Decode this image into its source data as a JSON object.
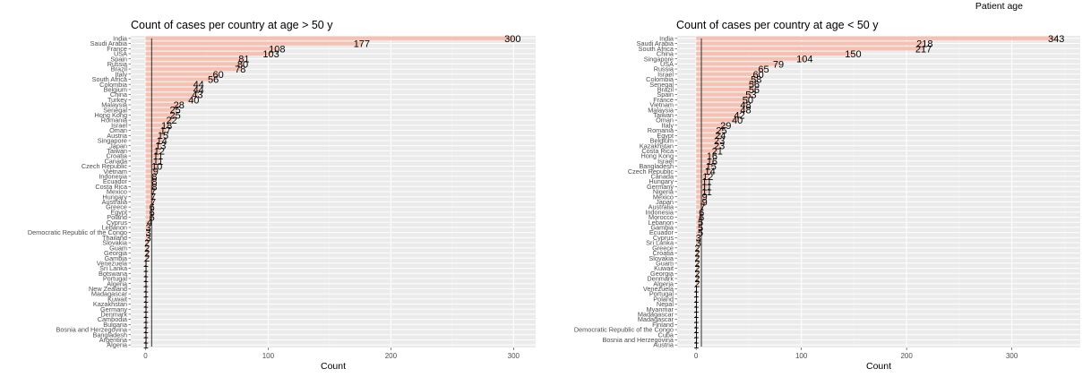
{
  "suptitle": "Patient age",
  "chart_data": [
    {
      "type": "bar",
      "orientation": "horizontal",
      "title": "Count of cases per country at age > 50 y",
      "xlabel": "Count",
      "ylabel": "",
      "xlim": [
        -12,
        318
      ],
      "xticks": [
        0,
        100,
        200,
        300
      ],
      "grid": true,
      "bar_color": "#f8c0b0",
      "categories": [
        "India",
        "Saudi Arabia",
        "France",
        "USA",
        "Spain",
        "Russia",
        "Brazil",
        "Italy",
        "South Africa",
        "Colombia",
        "Belgium",
        "China",
        "Turkey",
        "Malaysia",
        "Senegal",
        "Hong Kong",
        "Romania",
        "Israel",
        "Oman",
        "Austria",
        "Singapore",
        "Japan",
        "Taiwan",
        "Croatia",
        "Canada",
        "Czech Republic",
        "Vietnam",
        "Indonesia",
        "Ecuador",
        "Costa Rica",
        "Mexico",
        "Hungary",
        "Australia",
        "Greece",
        "Egypt",
        "Poland",
        "Cyprus",
        "Lebanon",
        "Democratic Republic of the Congo",
        "Thailand",
        "Slovakia",
        "Guam",
        "Georgia",
        "Gambia",
        "Venezuela",
        "Sri Lanka",
        "Botswana",
        "Portugal",
        "Algeria",
        "New Zealand",
        "Madagascar",
        "Kuwait",
        "Kazakhstan",
        "Germany",
        "Denmark",
        "Cambodia",
        "Bulgaria",
        "Bosnia and Herzegovina",
        "Bangladesh",
        "Argentina",
        "Algeria"
      ],
      "values": [
        300,
        177,
        108,
        103,
        81,
        80,
        78,
        60,
        56,
        44,
        44,
        43,
        40,
        28,
        25,
        25,
        22,
        18,
        17,
        15,
        14,
        13,
        12,
        11,
        11,
        10,
        9,
        8,
        8,
        8,
        7,
        7,
        7,
        6,
        6,
        6,
        4,
        3,
        3,
        3,
        2,
        2,
        2,
        2,
        1,
        1,
        1,
        1,
        1,
        1,
        1,
        1,
        1,
        1,
        1,
        1,
        1,
        1,
        1,
        1,
        1
      ],
      "data_labels": [
        "300",
        "177",
        "108",
        "103",
        "81",
        "80",
        "78",
        "60",
        "56",
        "44",
        "44",
        "43",
        "40",
        "28",
        "25",
        "25",
        "22",
        "18",
        "17",
        "15",
        "14",
        "13",
        "12",
        "11",
        "11",
        "10",
        "9",
        "8",
        "8",
        "8",
        "7",
        "7",
        "7",
        "6",
        "6",
        "6",
        "4",
        "3",
        "3",
        "3",
        "2",
        "2",
        "2",
        "2",
        "1",
        "1",
        "1",
        "1",
        "1",
        "1",
        "1",
        "1",
        "1",
        "1",
        "1",
        "1",
        "1",
        "1",
        "1",
        "1",
        "1"
      ]
    },
    {
      "type": "bar",
      "orientation": "horizontal",
      "title": "Count of cases per country at age < 50 y",
      "xlabel": "Count",
      "ylabel": "",
      "xlim": [
        -18,
        365
      ],
      "xticks": [
        0,
        100,
        200,
        300
      ],
      "grid": true,
      "bar_color": "#f8c0b0",
      "categories": [
        "India",
        "Saudi Arabia",
        "South Africa",
        "China",
        "Singapore",
        "USA",
        "Russia",
        "Israel",
        "Colombia",
        "Senegal",
        "Brazil",
        "Spain",
        "France",
        "Vietnam",
        "Malaysia",
        "Taiwan",
        "Oman",
        "Italy",
        "Romania",
        "Egypt",
        "Belgium",
        "Kazakhstan",
        "Costa Rica",
        "Hong Kong",
        "Israel",
        "Bangladesh",
        "Czech Republic",
        "Canada",
        "Hungary",
        "Germany",
        "Nigeria",
        "Mexico",
        "Japan",
        "Australia",
        "Indonesia",
        "Morocco",
        "Lebanon",
        "Gambia",
        "Ecuador",
        "Cyprus",
        "Sri Lanka",
        "Greece",
        "Croatia",
        "Slovakia",
        "Guam",
        "Kuwait",
        "Georgia",
        "Denmark",
        "Algeria",
        "Venezuela",
        "Portugal",
        "Poland",
        "Nepal",
        "Myanmar",
        "Madagascar",
        "Madagascar",
        "Finland",
        "Democratic Republic of the Congo",
        "Cuba",
        "Bosnia and Herzegovina",
        "Austria"
      ],
      "values": [
        343,
        218,
        217,
        150,
        104,
        79,
        65,
        60,
        58,
        56,
        56,
        53,
        50,
        48,
        48,
        42,
        40,
        29,
        25,
        24,
        23,
        23,
        21,
        16,
        16,
        15,
        14,
        12,
        11,
        11,
        11,
        9,
        9,
        7,
        6,
        6,
        5,
        5,
        5,
        3,
        3,
        2,
        2,
        2,
        2,
        2,
        2,
        2,
        2,
        1,
        1,
        1,
        1,
        1,
        1,
        1,
        1,
        1,
        1,
        1,
        1
      ],
      "data_labels": [
        "343",
        "218",
        "217",
        "150",
        "104",
        "79",
        "65",
        "60",
        "58",
        "56",
        "56",
        "53",
        "50",
        "48",
        "48",
        "42",
        "40",
        "29",
        "25",
        "24",
        "23",
        "23",
        "21",
        "16",
        "16",
        "15",
        "14",
        "12",
        "11",
        "11",
        "11",
        "9",
        "9",
        "7",
        "6",
        "6",
        "5",
        "5",
        "5",
        "3",
        "3",
        "2",
        "2",
        "2",
        "2",
        "2",
        "2",
        "2",
        "2",
        "1",
        "1",
        "1",
        "1",
        "1",
        "1",
        "1",
        "1",
        "1",
        "1",
        "1",
        "1"
      ]
    }
  ]
}
